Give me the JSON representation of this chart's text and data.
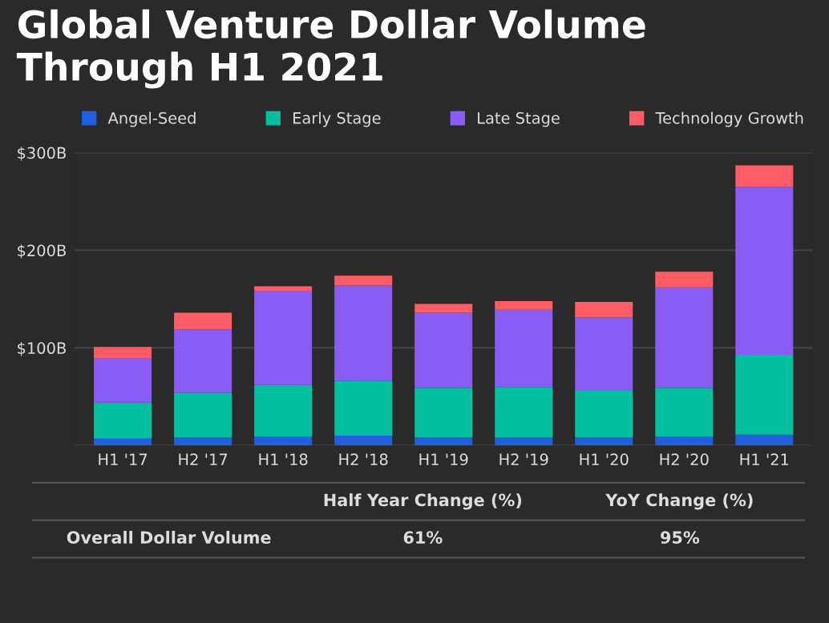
{
  "chart_data": {
    "type": "bar",
    "title": "Global Venture Dollar Volume Through H1 2021",
    "categories": [
      "H1 '17",
      "H2 '17",
      "H1 '18",
      "H2 '18",
      "H1 '19",
      "H2 '19",
      "H1 '20",
      "H2 '20",
      "H1 '21"
    ],
    "stacked": true,
    "series": [
      {
        "name": "Angel-Seed",
        "color": "#1f5fe0",
        "values": [
          7,
          8,
          9,
          10,
          8,
          8,
          8,
          9,
          11
        ]
      },
      {
        "name": "Early Stage",
        "color": "#00c0a0",
        "values": [
          37,
          46,
          53,
          56,
          51,
          52,
          48,
          50,
          82
        ]
      },
      {
        "name": "Late Stage",
        "color": "#8a5cf6",
        "values": [
          45,
          65,
          96,
          98,
          77,
          79,
          75,
          103,
          172
        ]
      },
      {
        "name": "Technology Growth",
        "color": "#ff5c66",
        "values": [
          12,
          17,
          5,
          10,
          9,
          9,
          16,
          16,
          22
        ]
      }
    ],
    "ylim": [
      0,
      300
    ],
    "yticks": [
      {
        "value": 0,
        "label": null
      },
      {
        "value": 100,
        "label": "$100B"
      },
      {
        "value": 200,
        "label": "$200B"
      },
      {
        "value": 300,
        "label": "$300B"
      }
    ],
    "grid": "y",
    "legend": "top",
    "annotations": [
      "Half Year Change (%)",
      "YoY Change (%)",
      "Overall Dollar Volume",
      "61%",
      "95%"
    ]
  }
}
